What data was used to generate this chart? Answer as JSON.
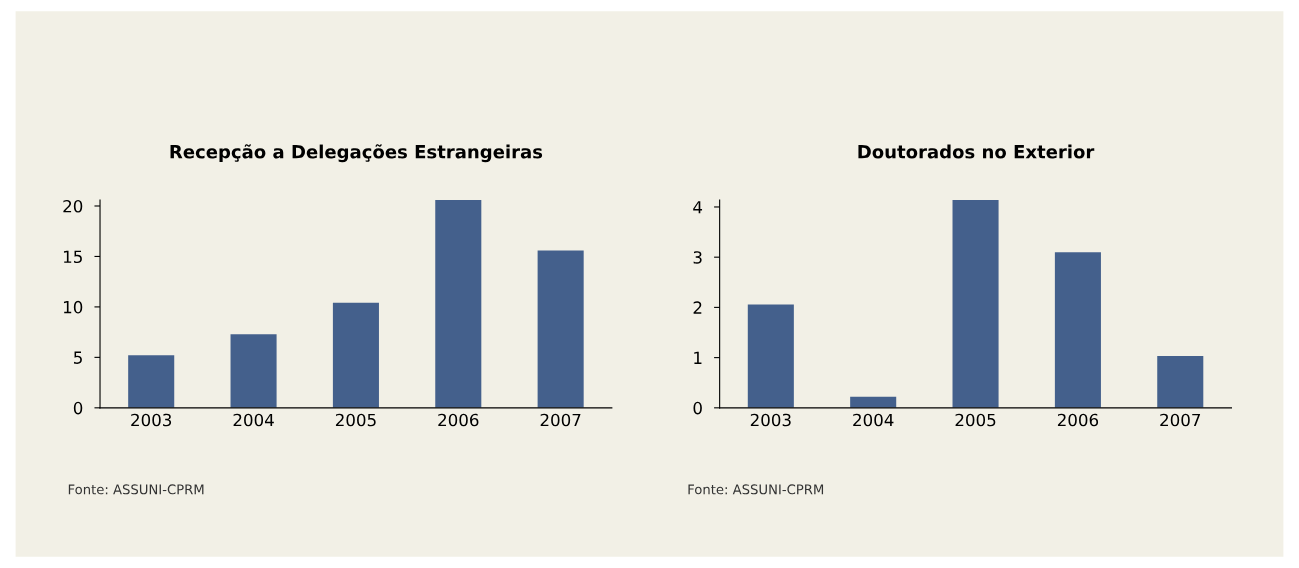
{
  "chart_data": [
    {
      "type": "bar",
      "title": "Recepção a Delegações Estrangeiras",
      "categories": [
        "2003",
        "2004",
        "2005",
        "2006",
        "2007"
      ],
      "values": [
        5.2,
        7.3,
        10.4,
        20.6,
        15.6
      ],
      "color": "#44608c",
      "ylim": [
        0,
        20.6
      ],
      "yticks": [
        0,
        5,
        10,
        15,
        20
      ],
      "grid": false,
      "annotations": [
        "Fonte: ASSUNI-CPRM"
      ]
    },
    {
      "type": "bar",
      "title": "Doutorados no Exterior",
      "categories": [
        "2003",
        "2004",
        "2005",
        "2006",
        "2007"
      ],
      "values": [
        2.06,
        0.22,
        4.14,
        3.1,
        1.03
      ],
      "color": "#44608c",
      "ylim": [
        0,
        4.14
      ],
      "yticks": [
        0,
        1,
        2,
        3,
        4
      ],
      "grid": false,
      "annotations": [
        "Fonte: ASSUNI-CPRM"
      ]
    }
  ]
}
